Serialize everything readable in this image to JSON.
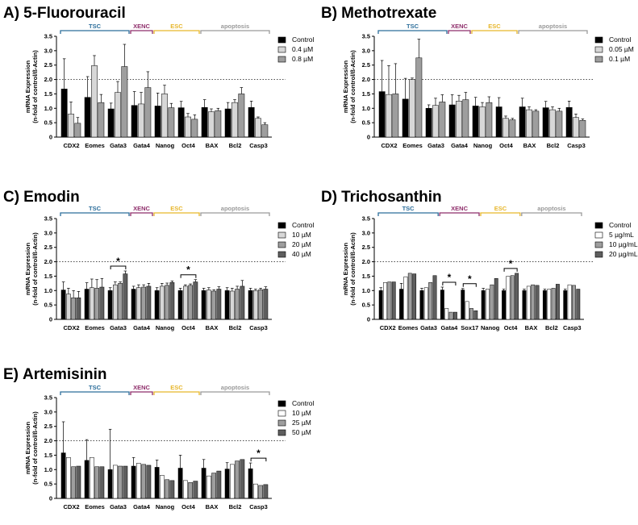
{
  "chart_data": [
    {
      "type": "bar",
      "panel": "A)",
      "title": "5-Fluorouracil",
      "ylabel": "mRNA Expression",
      "ylabel2": "(n-fold of control/ß-Actin)",
      "ylim": [
        0,
        3.5
      ],
      "yticks": [
        "0",
        "0.5",
        "1.0",
        "1.5",
        "2.0",
        "2.5",
        "3.0",
        "3.5"
      ],
      "categories": [
        "CDX2",
        "Eomes",
        "Gata3",
        "Gata4",
        "Nanog",
        "Oct4",
        "BAX",
        "Bcl2",
        "Casp3"
      ],
      "groups": [
        {
          "label": "TSC",
          "start": 0,
          "end": 2,
          "color": "#2c6e9b"
        },
        {
          "label": "XENC",
          "start": 3,
          "end": 3,
          "color": "#8e2d6a"
        },
        {
          "label": "ESC",
          "start": 4,
          "end": 5,
          "color": "#e7b62b"
        },
        {
          "label": "apoptosis",
          "start": 6,
          "end": 8,
          "color": "#9a9a9a"
        }
      ],
      "series": [
        {
          "name": "Control",
          "color": "#000000",
          "values": [
            1.67,
            1.38,
            0.98,
            1.1,
            1.08,
            1.02,
            1.03,
            0.98,
            1.03
          ],
          "errors": [
            1.05,
            0.72,
            0.2,
            0.48,
            0.45,
            0.22,
            0.27,
            0.22,
            0.22
          ]
        },
        {
          "name": "0.4 µM",
          "color": "#d7d7d7",
          "values": [
            0.8,
            2.48,
            1.55,
            1.15,
            1.5,
            0.7,
            0.88,
            1.2,
            0.65
          ],
          "errors": [
            0.42,
            0.35,
            0.38,
            0.4,
            0.3,
            0.12,
            0.1,
            0.1,
            0.05
          ]
        },
        {
          "name": "0.8 µM",
          "color": "#9e9e9e",
          "values": [
            0.48,
            1.2,
            2.45,
            1.72,
            1.02,
            0.62,
            0.92,
            1.5,
            0.43
          ],
          "errors": [
            0.2,
            0.28,
            0.77,
            0.55,
            0.15,
            0.15,
            0.08,
            0.22,
            0.07
          ]
        }
      ]
    },
    {
      "type": "bar",
      "panel": "B)",
      "title": "Methotrexate",
      "ylabel": "mRNA Expression",
      "ylabel2": "(n-fold of control/ß-Actin)",
      "ylim": [
        0,
        3.5
      ],
      "yticks": [
        "0",
        "0.5",
        "1.0",
        "1.5",
        "2.0",
        "2.5",
        "3.0",
        "3.5"
      ],
      "categories": [
        "CDX2",
        "Eomes",
        "Gata3",
        "Gata4",
        "Nanog",
        "Oct4",
        "BAX",
        "Bcl2",
        "Casp3"
      ],
      "groups": [
        {
          "label": "TSC",
          "start": 0,
          "end": 2,
          "color": "#2c6e9b"
        },
        {
          "label": "XENC",
          "start": 3,
          "end": 3,
          "color": "#8e2d6a"
        },
        {
          "label": "ESC",
          "start": 4,
          "end": 5,
          "color": "#e7b62b"
        },
        {
          "label": "apoptosis",
          "start": 6,
          "end": 8,
          "color": "#9a9a9a"
        }
      ],
      "series": [
        {
          "name": "Control",
          "color": "#000000",
          "values": [
            1.58,
            1.32,
            1.0,
            1.12,
            1.08,
            1.05,
            1.05,
            1.02,
            1.03
          ],
          "errors": [
            1.08,
            0.72,
            0.12,
            0.35,
            0.3,
            0.32,
            0.3,
            0.22,
            0.22
          ]
        },
        {
          "name": "0.05 µM",
          "color": "#d7d7d7",
          "values": [
            1.48,
            2.0,
            1.1,
            1.25,
            1.05,
            0.65,
            0.95,
            0.95,
            0.68
          ],
          "errors": [
            1.0,
            0.05,
            0.25,
            0.2,
            0.15,
            0.08,
            0.1,
            0.1,
            0.12
          ]
        },
        {
          "name": "0.1 µM",
          "color": "#9e9e9e",
          "values": [
            1.5,
            2.75,
            1.22,
            1.3,
            1.2,
            0.6,
            0.9,
            0.9,
            0.58
          ],
          "errors": [
            1.05,
            0.65,
            0.25,
            0.25,
            0.2,
            0.05,
            0.05,
            0.1,
            0.05
          ]
        }
      ]
    },
    {
      "type": "bar",
      "panel": "C)",
      "title": "Emodin",
      "ylabel": "mRNA Expression",
      "ylabel2": "(n-fold of control/ß-Actin)",
      "ylim": [
        0,
        3.5
      ],
      "yticks": [
        "0",
        "0.5",
        "1.0",
        "1.5",
        "2.0",
        "2.5",
        "3.0",
        "3.5"
      ],
      "categories": [
        "CDX2",
        "Eomes",
        "Gata3",
        "Gata4",
        "Nanog",
        "Oct4",
        "BAX",
        "Bcl2",
        "Casp3"
      ],
      "groups": [
        {
          "label": "TSC",
          "start": 0,
          "end": 2,
          "color": "#2c6e9b"
        },
        {
          "label": "XENC",
          "start": 3,
          "end": 3,
          "color": "#8e2d6a"
        },
        {
          "label": "ESC",
          "start": 4,
          "end": 5,
          "color": "#e7b62b"
        },
        {
          "label": "apoptosis",
          "start": 6,
          "end": 8,
          "color": "#9a9a9a"
        }
      ],
      "significance": [
        {
          "category": 2,
          "label": "*"
        },
        {
          "category": 5,
          "label": "*"
        }
      ],
      "series": [
        {
          "name": "Control",
          "color": "#000000",
          "values": [
            1.02,
            1.05,
            1.0,
            1.05,
            1.0,
            1.0,
            1.0,
            1.0,
            1.0
          ],
          "errors": [
            0.28,
            0.22,
            0.1,
            0.1,
            0.1,
            0.08,
            0.08,
            0.1,
            0.08
          ]
        },
        {
          "name": "10 µM",
          "color": "#d7d7d7",
          "values": [
            0.88,
            1.1,
            1.2,
            1.1,
            1.15,
            1.15,
            1.02,
            0.98,
            1.0
          ],
          "errors": [
            0.2,
            0.3,
            0.1,
            0.1,
            0.1,
            0.05,
            0.08,
            0.1,
            0.05
          ]
        },
        {
          "name": "20 µM",
          "color": "#9e9e9e",
          "values": [
            0.75,
            1.08,
            1.25,
            1.12,
            1.18,
            1.18,
            0.98,
            1.05,
            1.03
          ],
          "errors": [
            0.25,
            0.3,
            0.05,
            0.08,
            0.08,
            0.05,
            0.05,
            0.1,
            0.05
          ]
        },
        {
          "name": "40 µM",
          "color": "#5e5e5e",
          "values": [
            0.75,
            1.12,
            1.58,
            1.15,
            1.28,
            1.3,
            1.05,
            1.15,
            1.05
          ],
          "errors": [
            0.22,
            0.3,
            0.1,
            0.1,
            0.05,
            0.08,
            0.08,
            0.2,
            0.08
          ]
        }
      ]
    },
    {
      "type": "bar",
      "panel": "D)",
      "title": "Trichosanthin",
      "ylabel": "mRNA Expression",
      "ylabel2": "(n-fold of control/ß-Actin)",
      "ylim": [
        0,
        3.5
      ],
      "yticks": [
        "0",
        "0.5",
        "1.0",
        "1.5",
        "2.0",
        "2.5",
        "3.0",
        "3.5"
      ],
      "categories": [
        "CDX2",
        "Eomes",
        "Gata3",
        "Gata4",
        "Sox17",
        "Nanog",
        "Oct4",
        "BAX",
        "Bcl2",
        "Casp3"
      ],
      "groups": [
        {
          "label": "TSC",
          "start": 0,
          "end": 2,
          "color": "#2c6e9b"
        },
        {
          "label": "XENC",
          "start": 3,
          "end": 4,
          "color": "#8e2d6a"
        },
        {
          "label": "ESC",
          "start": 5,
          "end": 6,
          "color": "#e7b62b"
        },
        {
          "label": "apoptosis",
          "start": 7,
          "end": 9,
          "color": "#9a9a9a"
        }
      ],
      "significance": [
        {
          "category": 3,
          "label": "*"
        },
        {
          "category": 4,
          "label": "*"
        },
        {
          "category": 6,
          "label": "*"
        }
      ],
      "series": [
        {
          "name": "Control",
          "color": "#000000",
          "values": [
            1.0,
            1.05,
            1.0,
            1.02,
            1.02,
            1.0,
            1.0,
            1.0,
            1.0,
            1.0
          ],
          "errors": [
            0.1,
            0.2,
            0.08,
            0.1,
            0.05,
            0.08,
            0.05,
            0.05,
            0.05,
            0.05
          ]
        },
        {
          "name": "5 µg/mL",
          "color": "#ffffff",
          "values": [
            1.28,
            1.48,
            1.1,
            0.38,
            0.62,
            1.05,
            1.5,
            1.15,
            1.05,
            1.2
          ]
        },
        {
          "name": "10 µg/mL",
          "color": "#9e9e9e",
          "values": [
            1.3,
            1.6,
            1.28,
            0.25,
            0.38,
            1.2,
            1.52,
            1.2,
            1.08,
            1.18
          ]
        },
        {
          "name": "20 µg/mL",
          "color": "#5e5e5e",
          "values": [
            1.3,
            1.58,
            1.52,
            0.25,
            0.3,
            1.42,
            1.6,
            1.18,
            1.22,
            1.05
          ]
        }
      ]
    },
    {
      "type": "bar",
      "panel": "E)",
      "title": "Artemisinin",
      "ylabel": "mRNA Expression",
      "ylabel2": "(n-fold of control/ß-Actin)",
      "ylim": [
        0,
        3.5
      ],
      "yticks": [
        "0",
        "0.5",
        "1.0",
        "1.5",
        "2.0",
        "2.5",
        "3.0",
        "3.5"
      ],
      "categories": [
        "CDX2",
        "Eomes",
        "Gata3",
        "Gata4",
        "Nanog",
        "Oct4",
        "BAX",
        "Bcl2",
        "Casp3"
      ],
      "groups": [
        {
          "label": "TSC",
          "start": 0,
          "end": 2,
          "color": "#2c6e9b"
        },
        {
          "label": "XENC",
          "start": 3,
          "end": 3,
          "color": "#8e2d6a"
        },
        {
          "label": "ESC",
          "start": 4,
          "end": 5,
          "color": "#e7b62b"
        },
        {
          "label": "apoptosis",
          "start": 6,
          "end": 8,
          "color": "#9a9a9a"
        }
      ],
      "significance": [
        {
          "category": 8,
          "label": "*"
        }
      ],
      "series": [
        {
          "name": "Control",
          "color": "#000000",
          "values": [
            1.58,
            1.32,
            1.0,
            1.12,
            1.08,
            1.05,
            1.05,
            1.02,
            1.03
          ],
          "errors": [
            1.08,
            0.72,
            1.4,
            0.3,
            0.25,
            0.45,
            0.3,
            0.22,
            0.2
          ]
        },
        {
          "name": "10 µM",
          "color": "#ffffff",
          "values": [
            1.42,
            1.42,
            1.15,
            1.22,
            0.8,
            0.62,
            0.78,
            1.18,
            0.5
          ]
        },
        {
          "name": "25 µM",
          "color": "#9e9e9e",
          "values": [
            1.1,
            1.1,
            1.12,
            1.18,
            0.65,
            0.55,
            0.88,
            1.3,
            0.45
          ]
        },
        {
          "name": "50 µM",
          "color": "#5e5e5e",
          "values": [
            1.12,
            1.1,
            1.12,
            1.15,
            0.62,
            0.6,
            0.95,
            1.35,
            0.48
          ]
        }
      ]
    }
  ]
}
